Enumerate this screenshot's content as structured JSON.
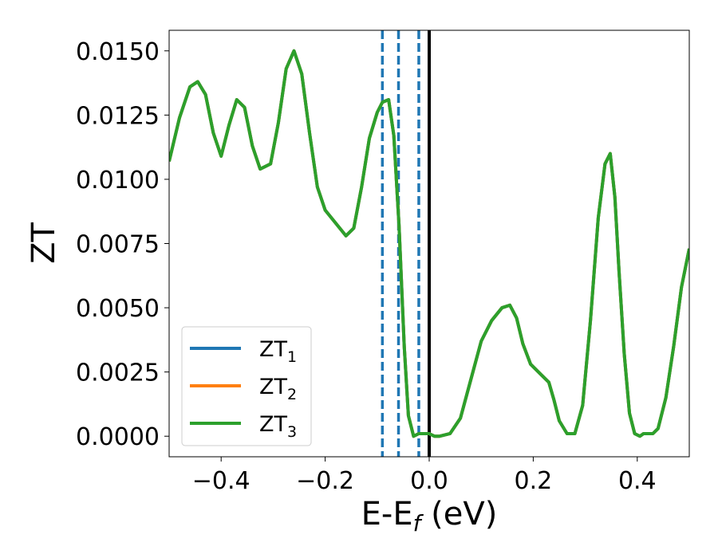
{
  "chart_data": {
    "type": "line",
    "xlabel": "E-E",
    "xlabel_sub": "f",
    "xlabel_unit": " (eV)",
    "ylabel": "ZT",
    "xlim": [
      -0.5,
      0.5
    ],
    "ylim": [
      -0.0008,
      0.0158
    ],
    "x_ticks": [
      -0.4,
      -0.2,
      0.0,
      0.2,
      0.4
    ],
    "x_tick_labels": [
      "−0.4",
      "−0.2",
      "0.0",
      "0.2",
      "0.4"
    ],
    "y_ticks": [
      0.0,
      0.0025,
      0.005,
      0.0075,
      0.01,
      0.0125,
      0.015
    ],
    "y_tick_labels": [
      "0.0000",
      "0.0025",
      "0.0050",
      "0.0075",
      "0.0100",
      "0.0125",
      "0.0150"
    ],
    "grid": false,
    "legend_position": "lower-left",
    "series": [
      {
        "name": "ZT",
        "name_sub": "1",
        "color": "#1f77b4",
        "x": [
          -0.5,
          -0.48,
          -0.46,
          -0.445,
          -0.43,
          -0.415,
          -0.4,
          -0.385,
          -0.37,
          -0.355,
          -0.34,
          -0.325,
          -0.305,
          -0.29,
          -0.275,
          -0.26,
          -0.245,
          -0.23,
          -0.215,
          -0.2,
          -0.18,
          -0.16,
          -0.145,
          -0.13,
          -0.115,
          -0.1,
          -0.09,
          -0.078,
          -0.068,
          -0.058,
          -0.048,
          -0.04,
          -0.03,
          -0.02,
          -0.01,
          0.0,
          0.01,
          0.02,
          0.04,
          0.06,
          0.08,
          0.1,
          0.12,
          0.14,
          0.155,
          0.168,
          0.18,
          0.195,
          0.21,
          0.23,
          0.24,
          0.25,
          0.265,
          0.28,
          0.295,
          0.31,
          0.325,
          0.338,
          0.348,
          0.357,
          0.365,
          0.375,
          0.385,
          0.395,
          0.405,
          0.412,
          0.42,
          0.43,
          0.44,
          0.455,
          0.47,
          0.485,
          0.5
        ],
        "values": [
          0.0107,
          0.0124,
          0.0136,
          0.0138,
          0.0133,
          0.0118,
          0.0109,
          0.0121,
          0.0131,
          0.0128,
          0.0113,
          0.0104,
          0.0106,
          0.0122,
          0.0143,
          0.015,
          0.0141,
          0.0118,
          0.0097,
          0.0088,
          0.0083,
          0.0078,
          0.0081,
          0.0097,
          0.0116,
          0.0126,
          0.013,
          0.0131,
          0.0117,
          0.0082,
          0.0035,
          0.0008,
          0.0,
          0.0001,
          0.0001,
          0.0001,
          0.0,
          0.0,
          0.0001,
          0.0007,
          0.0022,
          0.0037,
          0.0045,
          0.005,
          0.0051,
          0.0046,
          0.0036,
          0.0028,
          0.0025,
          0.0021,
          0.0014,
          0.0006,
          0.0001,
          0.0001,
          0.0012,
          0.0045,
          0.0085,
          0.0106,
          0.011,
          0.0093,
          0.0064,
          0.0032,
          0.0009,
          0.0001,
          0.0,
          0.0001,
          0.0001,
          0.0001,
          0.0003,
          0.0015,
          0.0035,
          0.0058,
          0.0073
        ]
      },
      {
        "name": "ZT",
        "name_sub": "2",
        "color": "#ff7f0e",
        "x": [
          -0.5,
          -0.48,
          -0.46,
          -0.445,
          -0.43,
          -0.415,
          -0.4,
          -0.385,
          -0.37,
          -0.355,
          -0.34,
          -0.325,
          -0.305,
          -0.29,
          -0.275,
          -0.26,
          -0.245,
          -0.23,
          -0.215,
          -0.2,
          -0.18,
          -0.16,
          -0.145,
          -0.13,
          -0.115,
          -0.1,
          -0.09,
          -0.078,
          -0.068,
          -0.058,
          -0.048,
          -0.04,
          -0.03,
          -0.02,
          -0.01,
          0.0,
          0.01,
          0.02,
          0.04,
          0.06,
          0.08,
          0.1,
          0.12,
          0.14,
          0.155,
          0.168,
          0.18,
          0.195,
          0.21,
          0.23,
          0.24,
          0.25,
          0.265,
          0.28,
          0.295,
          0.31,
          0.325,
          0.338,
          0.348,
          0.357,
          0.365,
          0.375,
          0.385,
          0.395,
          0.405,
          0.412,
          0.42,
          0.43,
          0.44,
          0.455,
          0.47,
          0.485,
          0.5
        ],
        "values": [
          0.0107,
          0.0124,
          0.0136,
          0.0138,
          0.0133,
          0.0118,
          0.0109,
          0.0121,
          0.0131,
          0.0128,
          0.0113,
          0.0104,
          0.0106,
          0.0122,
          0.0143,
          0.015,
          0.0141,
          0.0118,
          0.0097,
          0.0088,
          0.0083,
          0.0078,
          0.0081,
          0.0097,
          0.0116,
          0.0126,
          0.013,
          0.0131,
          0.0117,
          0.0082,
          0.0035,
          0.0008,
          0.0,
          0.0001,
          0.0001,
          0.0001,
          0.0,
          0.0,
          0.0001,
          0.0007,
          0.0022,
          0.0037,
          0.0045,
          0.005,
          0.0051,
          0.0046,
          0.0036,
          0.0028,
          0.0025,
          0.0021,
          0.0014,
          0.0006,
          0.0001,
          0.0001,
          0.0012,
          0.0045,
          0.0085,
          0.0106,
          0.011,
          0.0093,
          0.0064,
          0.0032,
          0.0009,
          0.0001,
          0.0,
          0.0001,
          0.0001,
          0.0001,
          0.0003,
          0.0015,
          0.0035,
          0.0058,
          0.0073
        ]
      },
      {
        "name": "ZT",
        "name_sub": "3",
        "color": "#2ca02c",
        "x": [
          -0.5,
          -0.48,
          -0.46,
          -0.445,
          -0.43,
          -0.415,
          -0.4,
          -0.385,
          -0.37,
          -0.355,
          -0.34,
          -0.325,
          -0.305,
          -0.29,
          -0.275,
          -0.26,
          -0.245,
          -0.23,
          -0.215,
          -0.2,
          -0.18,
          -0.16,
          -0.145,
          -0.13,
          -0.115,
          -0.1,
          -0.09,
          -0.078,
          -0.068,
          -0.058,
          -0.048,
          -0.04,
          -0.03,
          -0.02,
          -0.01,
          0.0,
          0.01,
          0.02,
          0.04,
          0.06,
          0.08,
          0.1,
          0.12,
          0.14,
          0.155,
          0.168,
          0.18,
          0.195,
          0.21,
          0.23,
          0.24,
          0.25,
          0.265,
          0.28,
          0.295,
          0.31,
          0.325,
          0.338,
          0.348,
          0.357,
          0.365,
          0.375,
          0.385,
          0.395,
          0.405,
          0.412,
          0.42,
          0.43,
          0.44,
          0.455,
          0.47,
          0.485,
          0.5
        ],
        "values": [
          0.0107,
          0.0124,
          0.0136,
          0.0138,
          0.0133,
          0.0118,
          0.0109,
          0.0121,
          0.0131,
          0.0128,
          0.0113,
          0.0104,
          0.0106,
          0.0122,
          0.0143,
          0.015,
          0.0141,
          0.0118,
          0.0097,
          0.0088,
          0.0083,
          0.0078,
          0.0081,
          0.0097,
          0.0116,
          0.0126,
          0.013,
          0.0131,
          0.0117,
          0.0082,
          0.0035,
          0.0008,
          0.0,
          0.0001,
          0.0001,
          0.0001,
          0.0,
          0.0,
          0.0001,
          0.0007,
          0.0022,
          0.0037,
          0.0045,
          0.005,
          0.0051,
          0.0046,
          0.0036,
          0.0028,
          0.0025,
          0.0021,
          0.0014,
          0.0006,
          0.0001,
          0.0001,
          0.0012,
          0.0045,
          0.0085,
          0.0106,
          0.011,
          0.0093,
          0.0064,
          0.0032,
          0.0009,
          0.0001,
          0.0,
          0.0001,
          0.0001,
          0.0001,
          0.0003,
          0.0015,
          0.0035,
          0.0058,
          0.0073
        ]
      }
    ],
    "vertical_lines": [
      {
        "x": -0.09,
        "style": "dashed",
        "color": "#1f77b4"
      },
      {
        "x": -0.059,
        "style": "dashed",
        "color": "#1f77b4"
      },
      {
        "x": -0.02,
        "style": "dashed",
        "color": "#1f77b4"
      },
      {
        "x": 0.0,
        "style": "solid",
        "color": "#000000"
      }
    ]
  }
}
